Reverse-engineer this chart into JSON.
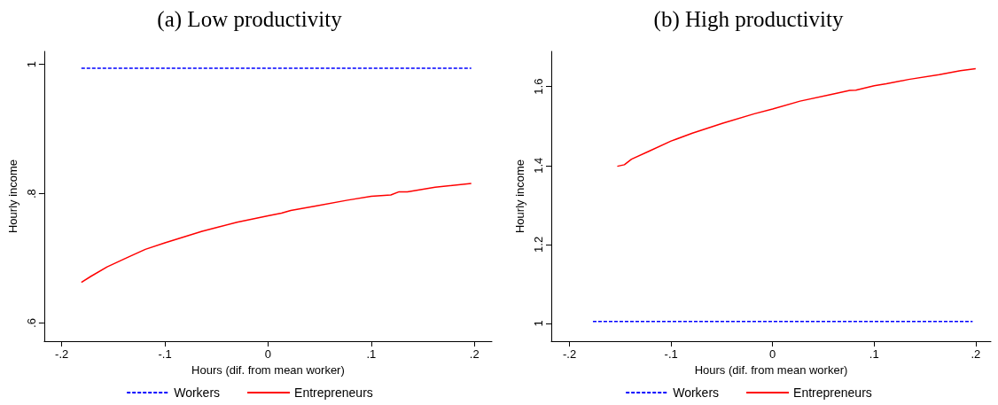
{
  "chart_data": [
    {
      "type": "line",
      "title": "(a) Low productivity",
      "xlabel": "Hours (dif. from mean worker)",
      "ylabel": "Hourly income",
      "legend": "bottom",
      "marker": "none",
      "grid": false,
      "xlim": [
        -0.217,
        0.217
      ],
      "xticks": [
        {
          "value": -0.2,
          "label": "-.2"
        },
        {
          "value": -0.1,
          "label": "-.1"
        },
        0,
        {
          "value": 0.1,
          "label": ".1"
        },
        {
          "value": 0.2,
          "label": ".2"
        }
      ],
      "ylim": [
        0.572,
        1.02
      ],
      "yticks": [
        {
          "value": 0.6,
          "label": ".6"
        },
        {
          "value": 0.8,
          "label": ".8"
        },
        1
      ],
      "series": [
        {
          "name": "Workers",
          "color": "#0000ff",
          "line_style": "dashed",
          "x": [
            -0.181,
            0.197
          ],
          "values": [
            0.994,
            0.994
          ]
        },
        {
          "name": "Entrepreneurs",
          "color": "#ff0000",
          "line_style": "solid",
          "x": [
            -0.181,
            -0.172,
            -0.156,
            -0.137,
            -0.119,
            -0.1,
            -0.064,
            -0.03,
            0,
            0.013,
            0.022,
            0.046,
            0.077,
            0.1,
            0.119,
            0.127,
            0.135,
            0.162,
            0.197
          ],
          "values": [
            0.663,
            0.672,
            0.687,
            0.701,
            0.714,
            0.724,
            0.742,
            0.756,
            0.766,
            0.77,
            0.774,
            0.781,
            0.79,
            0.796,
            0.798,
            0.803,
            0.803,
            0.81,
            0.816
          ]
        }
      ]
    },
    {
      "type": "line",
      "title": "(b) High productivity",
      "xlabel": "Hours (dif. from mean worker)",
      "ylabel": "Hourly income",
      "legend": "bottom",
      "marker": "none",
      "grid": false,
      "xlim": [
        -0.218,
        0.215
      ],
      "xticks": [
        {
          "value": -0.2,
          "label": "-.2"
        },
        {
          "value": -0.1,
          "label": "-.1"
        },
        0,
        {
          "value": 0.1,
          "label": ".1"
        },
        {
          "value": 0.2,
          "label": ".2"
        }
      ],
      "ylim": [
        0.955,
        1.689
      ],
      "yticks": [
        1,
        1.2,
        1.4,
        1.6
      ],
      "series": [
        {
          "name": "Workers",
          "color": "#0000ff",
          "line_style": "dashed",
          "x": [
            -0.177,
            0.197
          ],
          "values": [
            1.005,
            1.005
          ]
        },
        {
          "name": "Entrepreneurs",
          "color": "#ff0000",
          "line_style": "solid",
          "x": [
            -0.153,
            -0.146,
            -0.139,
            -0.122,
            -0.1,
            -0.079,
            -0.049,
            -0.018,
            0,
            0.027,
            0.058,
            0.076,
            0.082,
            0.1,
            0.112,
            0.134,
            0.164,
            0.185,
            0.2
          ],
          "values": [
            1.398,
            1.402,
            1.416,
            1.436,
            1.462,
            1.482,
            1.507,
            1.531,
            1.543,
            1.563,
            1.58,
            1.59,
            1.591,
            1.602,
            1.607,
            1.618,
            1.63,
            1.64,
            1.645
          ]
        }
      ]
    }
  ]
}
